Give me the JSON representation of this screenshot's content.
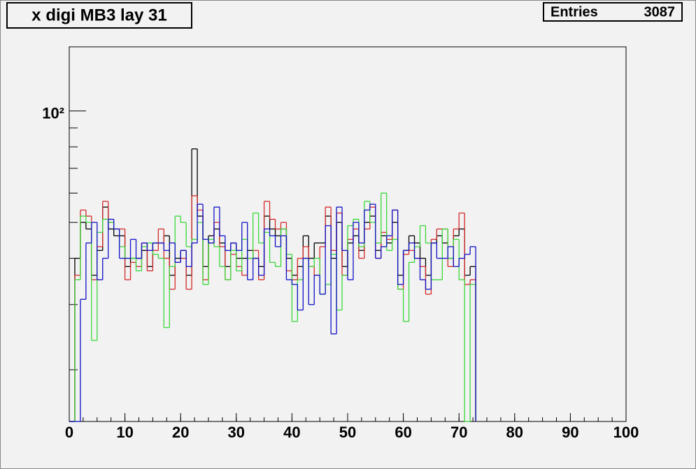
{
  "chart_data": {
    "type": "histogram",
    "title": "x digi MB3 lay 31",
    "stats_label": "Entries",
    "entries": 3087,
    "bins": [
      0,
      1,
      2,
      3,
      4,
      5,
      6,
      7,
      8,
      9,
      10,
      11,
      12,
      13,
      14,
      15,
      16,
      17,
      18,
      19,
      20,
      21,
      22,
      23,
      24,
      25,
      26,
      27,
      28,
      29,
      30,
      31,
      32,
      33,
      34,
      35,
      36,
      37,
      38,
      39,
      40,
      41,
      42,
      43,
      44,
      45,
      46,
      47,
      48,
      49,
      50,
      51,
      52,
      53,
      54,
      55,
      56,
      57,
      58,
      59,
      60,
      61,
      62,
      63,
      64,
      65,
      66,
      67,
      68,
      69,
      70,
      71,
      72,
      73
    ],
    "series": [
      {
        "color": "#000000",
        "values": [
          0,
          40,
          50,
          48,
          36,
          42,
          55,
          48,
          46,
          46,
          38,
          40,
          40,
          42,
          38,
          44,
          44,
          46,
          36,
          40,
          42,
          36,
          79,
          52,
          38,
          46,
          48,
          44,
          38,
          44,
          40,
          40,
          42,
          40,
          38,
          52,
          48,
          46,
          48,
          40,
          36,
          38,
          46,
          40,
          44,
          44,
          52,
          40,
          50,
          38,
          44,
          46,
          42,
          50,
          52,
          42,
          46,
          44,
          50,
          36,
          42,
          46,
          44,
          40,
          36,
          44,
          46,
          44,
          40,
          46,
          48,
          36,
          38
        ]
      },
      {
        "color": "#d42a2a",
        "values": [
          0,
          36,
          54,
          52,
          35,
          43,
          57,
          50,
          48,
          48,
          35,
          39,
          38,
          44,
          37,
          42,
          48,
          40,
          33,
          39,
          40,
          33,
          59,
          54,
          35,
          44,
          50,
          43,
          35,
          41,
          38,
          36,
          40,
          42,
          35,
          57,
          51,
          48,
          50,
          37,
          35,
          40,
          43,
          38,
          36,
          43,
          55,
          42,
          53,
          36,
          45,
          48,
          40,
          48,
          55,
          40,
          47,
          45,
          54,
          33,
          41,
          42,
          40,
          38,
          32,
          45,
          48,
          48,
          38,
          48,
          53,
          34,
          35
        ]
      },
      {
        "color": "#3ad83a",
        "values": [
          0,
          35,
          52,
          50,
          24,
          47,
          51,
          50,
          48,
          43,
          40,
          40,
          37,
          43,
          44,
          41,
          40,
          26,
          38,
          52,
          50,
          43,
          45,
          50,
          34,
          45,
          43,
          38,
          35,
          42,
          37,
          45,
          40,
          53,
          44,
          47,
          39,
          38,
          48,
          41,
          27,
          35,
          40,
          38,
          40,
          32,
          34,
          41,
          29,
          36,
          49,
          51,
          43,
          57,
          50,
          44,
          60,
          42,
          45,
          33,
          27,
          39,
          43,
          49,
          44,
          35,
          35,
          48,
          40,
          45,
          35,
          0,
          34
        ]
      },
      {
        "color": "#1010c8",
        "values": [
          0,
          0,
          31,
          44,
          50,
          35,
          40,
          51,
          48,
          40,
          40,
          45,
          40,
          44,
          42,
          44,
          44,
          42,
          44,
          39,
          42,
          38,
          44,
          56,
          45,
          44,
          55,
          46,
          42,
          44,
          42,
          50,
          35,
          40,
          36,
          48,
          46,
          43,
          46,
          35,
          34,
          29,
          40,
          30,
          36,
          32,
          49,
          25,
          55,
          42,
          35,
          50,
          44,
          54,
          56,
          40,
          43,
          46,
          54,
          34,
          42,
          44,
          40,
          35,
          33,
          44,
          40,
          40,
          43,
          38,
          40,
          41,
          43
        ]
      }
    ],
    "xlim": [
      0,
      100
    ],
    "xticks": [
      0,
      10,
      20,
      30,
      40,
      50,
      60,
      70,
      80,
      90,
      100
    ],
    "xminor_step": 2.5,
    "ylim": [
      14.5,
      149
    ],
    "log_y": true,
    "yticks": [
      {
        "value": 100,
        "label": "10²"
      }
    ],
    "yminor_ticks": [
      20,
      30,
      40,
      50,
      60,
      70,
      80,
      90
    ]
  }
}
